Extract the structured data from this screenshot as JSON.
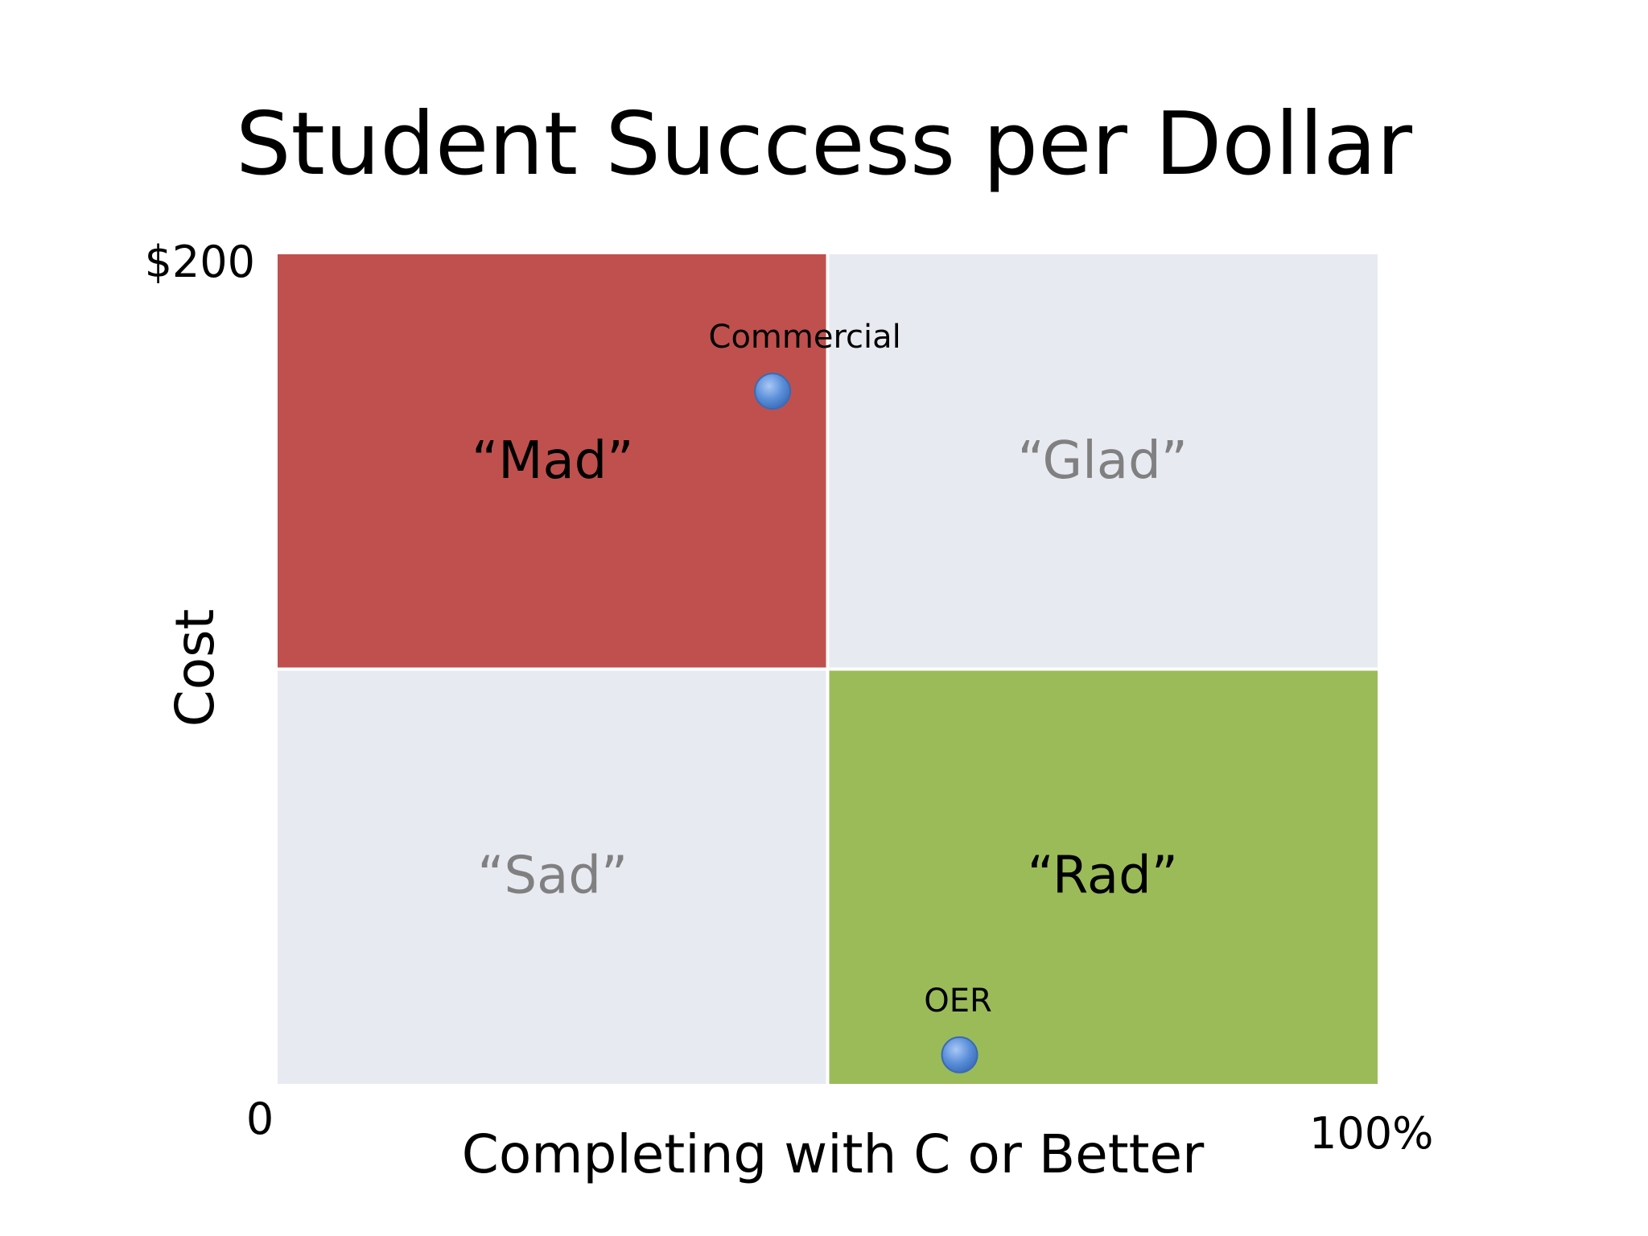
{
  "slide": {
    "title": "Student Success per Dollar"
  },
  "chart_data": {
    "type": "scatter",
    "title": "Student Success per Dollar",
    "xlabel": "Completing with C or Better",
    "ylabel": "Cost",
    "xlim": [
      0,
      100
    ],
    "ylim": [
      0,
      200
    ],
    "x_tick_labels": {
      "min": "0",
      "max": "100%"
    },
    "y_tick_labels": {
      "max": "$200"
    },
    "grid": false,
    "quadrants": [
      {
        "id": "mad",
        "label": "“Mad”",
        "x_range": [
          0,
          50
        ],
        "y_range": [
          100,
          200
        ],
        "fill": "#c0504d",
        "text_color": "#000000"
      },
      {
        "id": "glad",
        "label": "“Glad”",
        "x_range": [
          50,
          100
        ],
        "y_range": [
          100,
          200
        ],
        "fill": "#e8eaf2",
        "text_color": "#808080"
      },
      {
        "id": "sad",
        "label": "“Sad”",
        "x_range": [
          0,
          50
        ],
        "y_range": [
          0,
          100
        ],
        "fill": "#e8eaf2",
        "text_color": "#808080"
      },
      {
        "id": "rad",
        "label": "“Rad”",
        "x_range": [
          50,
          100
        ],
        "y_range": [
          0,
          100
        ],
        "fill": "#9bbb59",
        "text_color": "#000000"
      }
    ],
    "points": [
      {
        "label": "Commercial",
        "x": 45,
        "y": 167
      },
      {
        "label": "OER",
        "x": 62,
        "y": 7
      }
    ],
    "colors": {
      "point_fill": "#5b8fd9",
      "point_stroke": "#3a6bb5"
    }
  }
}
